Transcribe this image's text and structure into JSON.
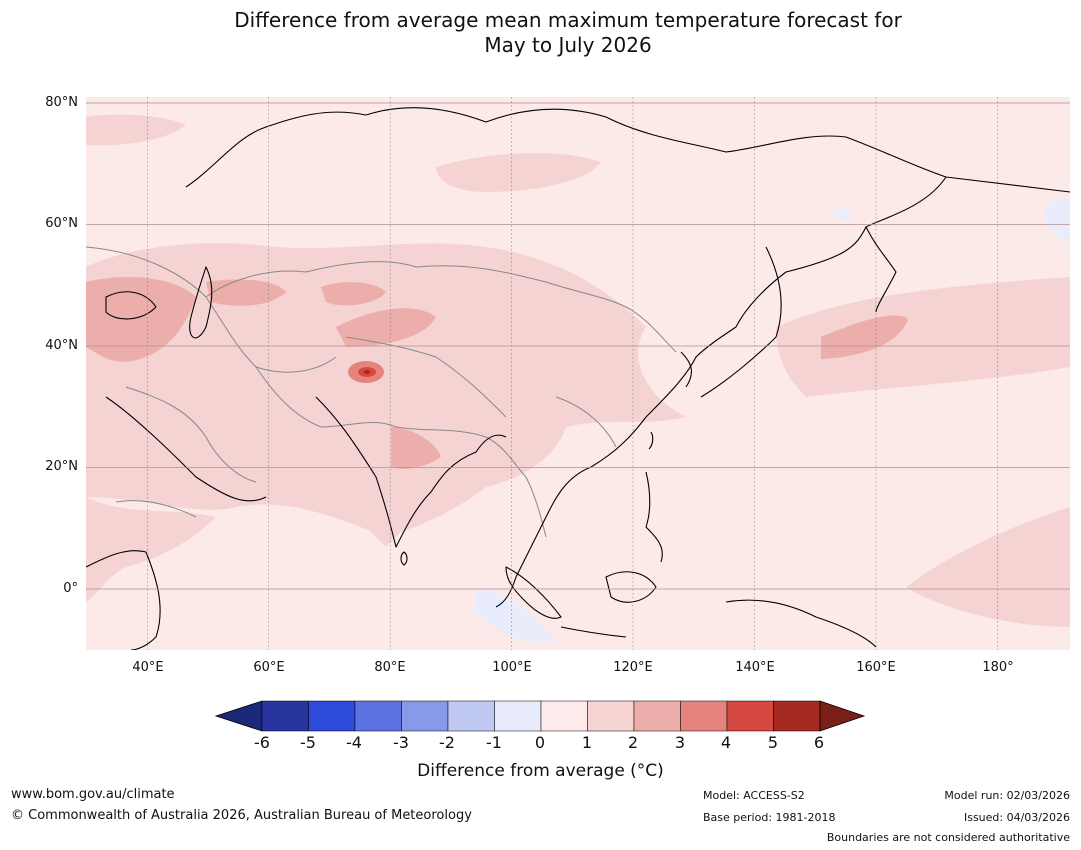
{
  "title": {
    "line1": "Difference from average mean maximum temperature forecast for",
    "line2": "May to July 2026"
  },
  "map": {
    "latitude_labels": [
      "80°N",
      "60°N",
      "40°N",
      "20°N",
      "0°"
    ],
    "longitude_labels": [
      "40°E",
      "60°E",
      "80°E",
      "100°E",
      "120°E",
      "140°E",
      "160°E",
      "180°"
    ],
    "extent": {
      "lon_min": 30,
      "lon_max": 192,
      "lat_min": -10,
      "lat_max": 81
    },
    "dominant_anomaly_range": "0 to 1",
    "warm_regions": [
      "Eastern Europe",
      "Central Asia",
      "Tibetan Plateau",
      "India",
      "Subtropical north Pacific near 40°N"
    ],
    "cool_regions": [
      "Equatorial Indian Ocean south of Sumatra",
      "Far northeast Russia"
    ],
    "hotspot_label": "Western Tibet / Karakoram"
  },
  "colorbar": {
    "ticks": [
      "-6",
      "-5",
      "-4",
      "-3",
      "-2",
      "-1",
      "0",
      "1",
      "2",
      "3",
      "4",
      "5",
      "6"
    ],
    "colors": [
      "#28359e",
      "#2f4bdb",
      "#5b72e0",
      "#8799e9",
      "#bfc9f3",
      "#e9ecfb",
      "#fdeaea",
      "#f5d3d3",
      "#ecaeaa",
      "#e5837d",
      "#d64940",
      "#a52b22"
    ],
    "extend_low_color": "#1b2a78",
    "extend_high_color": "#7a1f18",
    "label": "Difference from average (°C)"
  },
  "footer": {
    "website": "www.bom.gov.au/climate",
    "copyright": "© Commonwealth of Australia 2026, Australian Bureau of Meteorology",
    "model": "Model: ACCESS-S2",
    "base_period": "Base period: 1981-2018",
    "model_run": "Model run: 02/03/2026",
    "issued": "Issued: 04/03/2026",
    "disclaimer": "Boundaries are not considered authoritative"
  }
}
